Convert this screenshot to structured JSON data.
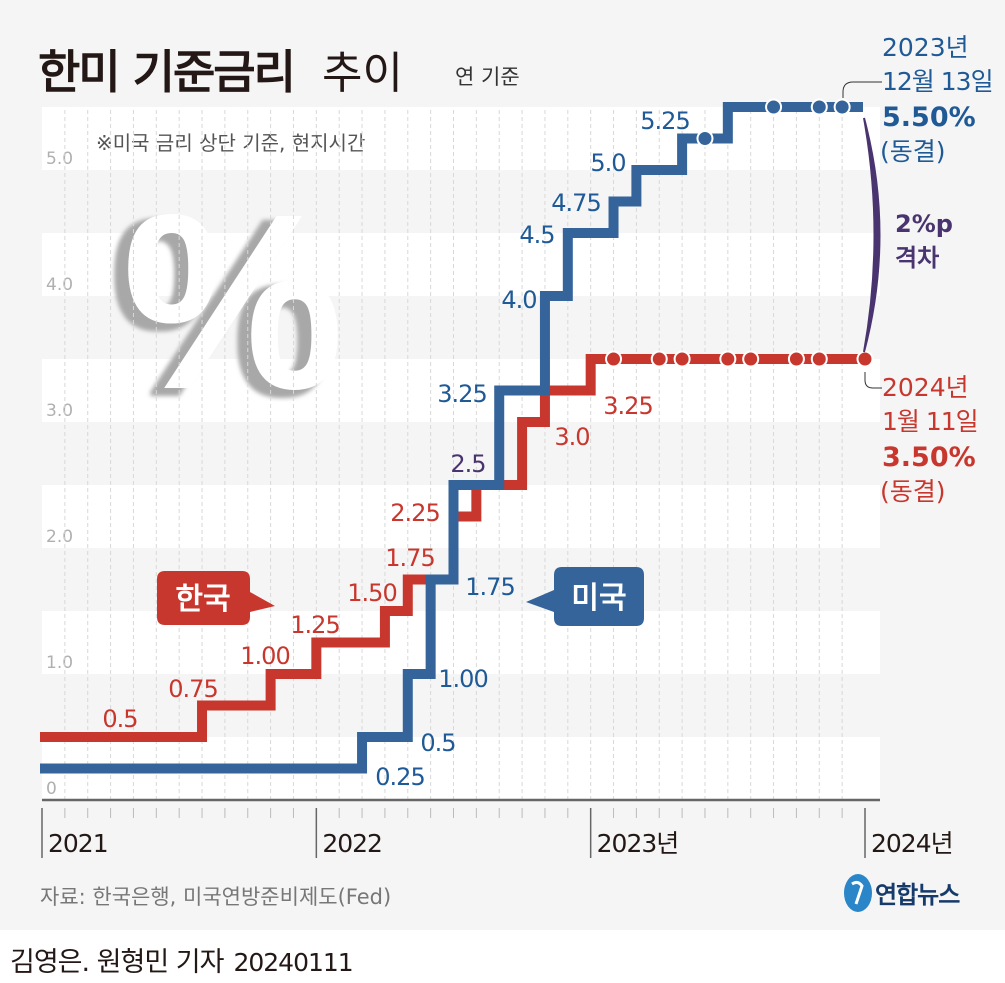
{
  "header": {
    "title_bold": "한미 기준금리",
    "title_light": "추이",
    "unit": "연 기준",
    "note": "※미국 금리 상단 기준, 현지시간"
  },
  "decor": {
    "percent_symbol": "%"
  },
  "legend": {
    "korea": "한국",
    "us": "미국"
  },
  "annotations": {
    "us_latest": {
      "line1": "2023년",
      "line2": "12월 13일",
      "rate": "5.50%",
      "status": "(동결)"
    },
    "korea_latest": {
      "line1": "2024년",
      "line2": "1월 11일",
      "rate": "3.50%",
      "status": "(동결)"
    },
    "gap": {
      "line1": "2%p",
      "line2": "격차"
    }
  },
  "footer": {
    "source": "자료: 한국은행, 미국연방준비제도(Fed)",
    "logo": "연합뉴스",
    "byline": "김영은. 원형민 기자",
    "date": "20240111"
  },
  "colors": {
    "korea": "#c8372d",
    "us": "#34649a",
    "us_text": "#1f5a96",
    "gap": "#4a3470",
    "grid_band": "#f5f5f5"
  },
  "chart_data": {
    "type": "line",
    "step": true,
    "ylim": [
      0,
      5.5
    ],
    "yticks": [
      "0",
      "1.0",
      "2.0",
      "3.0",
      "4.0",
      "5.0"
    ],
    "xlim": [
      "2021-01",
      "2024-01"
    ],
    "xticks": [
      "2021",
      "2022",
      "2023년",
      "2024년"
    ],
    "grid": "horizontal bands",
    "series": [
      {
        "name": "한국",
        "color": "#c8372d",
        "steps": [
          {
            "date": "2021-01",
            "value": 0.5,
            "label": "0.5"
          },
          {
            "date": "2021-08",
            "value": 0.75,
            "label": "0.75"
          },
          {
            "date": "2021-11",
            "value": 1.0,
            "label": "1.00"
          },
          {
            "date": "2022-01",
            "value": 1.25,
            "label": "1.25"
          },
          {
            "date": "2022-04",
            "value": 1.5,
            "label": "1.50"
          },
          {
            "date": "2022-05",
            "value": 1.75,
            "label": "1.75"
          },
          {
            "date": "2022-07",
            "value": 2.25,
            "label": "2.25"
          },
          {
            "date": "2022-08",
            "value": 2.5,
            "label": "2.5"
          },
          {
            "date": "2022-10",
            "value": 3.0,
            "label": "3.0"
          },
          {
            "date": "2022-11",
            "value": 3.25,
            "label": "3.25"
          },
          {
            "date": "2023-01",
            "value": 3.5,
            "label": ""
          }
        ],
        "holds": [
          "2023-02",
          "2023-04",
          "2023-05",
          "2023-07",
          "2023-08",
          "2023-10",
          "2023-11",
          "2024-01"
        ]
      },
      {
        "name": "미국",
        "color": "#34649a",
        "steps": [
          {
            "date": "2021-01",
            "value": 0.25,
            "label": "0.25"
          },
          {
            "date": "2022-03",
            "value": 0.5,
            "label": "0.5"
          },
          {
            "date": "2022-05",
            "value": 1.0,
            "label": "1.00"
          },
          {
            "date": "2022-06",
            "value": 1.75,
            "label": "1.75"
          },
          {
            "date": "2022-07",
            "value": 2.5,
            "label": ""
          },
          {
            "date": "2022-09",
            "value": 3.25,
            "label": "3.25"
          },
          {
            "date": "2022-11",
            "value": 4.0,
            "label": "4.0"
          },
          {
            "date": "2022-12",
            "value": 4.5,
            "label": "4.5"
          },
          {
            "date": "2023-02",
            "value": 4.75,
            "label": "4.75"
          },
          {
            "date": "2023-03",
            "value": 5.0,
            "label": "5.0"
          },
          {
            "date": "2023-05",
            "value": 5.25,
            "label": "5.25"
          },
          {
            "date": "2023-07",
            "value": 5.5,
            "label": ""
          }
        ],
        "holds": [
          "2023-06",
          "2023-09",
          "2023-11",
          "2023-12"
        ]
      }
    ]
  }
}
